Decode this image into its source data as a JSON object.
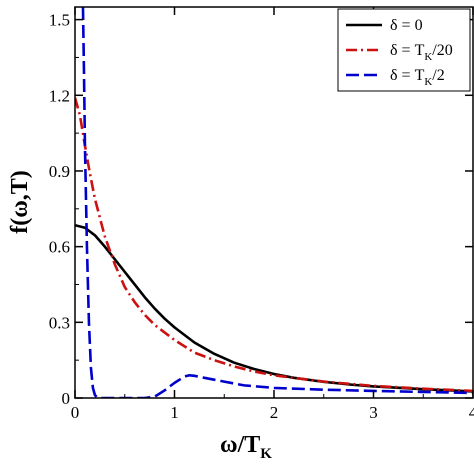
{
  "chart_data": {
    "type": "line",
    "xlabel": {
      "main": "ω/T",
      "sub": "K"
    },
    "ylabel": "f(ω,T)",
    "xlim": [
      0,
      4
    ],
    "ylim": [
      0,
      1.55
    ],
    "xticks": [
      0,
      1,
      2,
      3,
      4
    ],
    "yticks": [
      0,
      0.3,
      0.6,
      0.9,
      1.2,
      1.5
    ],
    "xtick_labels": [
      "0",
      "1",
      "2",
      "3",
      "4"
    ],
    "ytick_labels": [
      "0",
      "0.3",
      "0.6",
      "0.9",
      "1.2",
      "1.5"
    ],
    "grid": false,
    "legend_position": "top-right",
    "series": [
      {
        "legend_main": "δ = 0",
        "legend_sub": "",
        "legend_tail": "",
        "color": "#000000",
        "style": "solid",
        "x": [
          0,
          0.1,
          0.2,
          0.3,
          0.4,
          0.5,
          0.6,
          0.7,
          0.8,
          0.9,
          1.0,
          1.2,
          1.4,
          1.6,
          1.8,
          2.0,
          2.2,
          2.5,
          2.8,
          3.0,
          3.5,
          4.0
        ],
        "y": [
          0.685,
          0.675,
          0.645,
          0.6,
          0.55,
          0.5,
          0.45,
          0.4,
          0.355,
          0.315,
          0.28,
          0.22,
          0.175,
          0.14,
          0.115,
          0.095,
          0.08,
          0.064,
          0.052,
          0.046,
          0.035,
          0.026
        ]
      },
      {
        "legend_main": "δ = T",
        "legend_sub": "K",
        "legend_tail": "/20",
        "color": "#cc1111",
        "style": "dashdot",
        "x": [
          0,
          0.05,
          0.1,
          0.15,
          0.2,
          0.3,
          0.4,
          0.5,
          0.6,
          0.7,
          0.8,
          1.0,
          1.2,
          1.4,
          1.6,
          1.8,
          2.0,
          2.5,
          3.0,
          3.5,
          4.0
        ],
        "y": [
          1.19,
          1.12,
          1.0,
          0.89,
          0.79,
          0.64,
          0.53,
          0.44,
          0.38,
          0.33,
          0.29,
          0.23,
          0.18,
          0.15,
          0.125,
          0.105,
          0.09,
          0.065,
          0.048,
          0.037,
          0.028
        ]
      },
      {
        "legend_main": "δ = T",
        "legend_sub": "K",
        "legend_tail": "/2",
        "color": "#0000cc",
        "style": "dashed",
        "x": [
          0.08,
          0.09,
          0.1,
          0.12,
          0.14,
          0.16,
          0.18,
          0.2,
          0.22,
          0.25,
          0.3,
          0.5,
          0.7,
          0.8,
          0.9,
          1.0,
          1.1,
          1.15,
          1.2,
          1.3,
          1.5,
          1.7,
          2.0,
          2.5,
          3.0,
          3.5,
          4.0
        ],
        "y": [
          1.55,
          1.3,
          1.0,
          0.6,
          0.3,
          0.12,
          0.04,
          0.012,
          0.003,
          0.0,
          0.0,
          0.0,
          0.0,
          0.005,
          0.03,
          0.06,
          0.085,
          0.09,
          0.088,
          0.08,
          0.065,
          0.05,
          0.04,
          0.033,
          0.028,
          0.024,
          0.02
        ]
      }
    ]
  }
}
